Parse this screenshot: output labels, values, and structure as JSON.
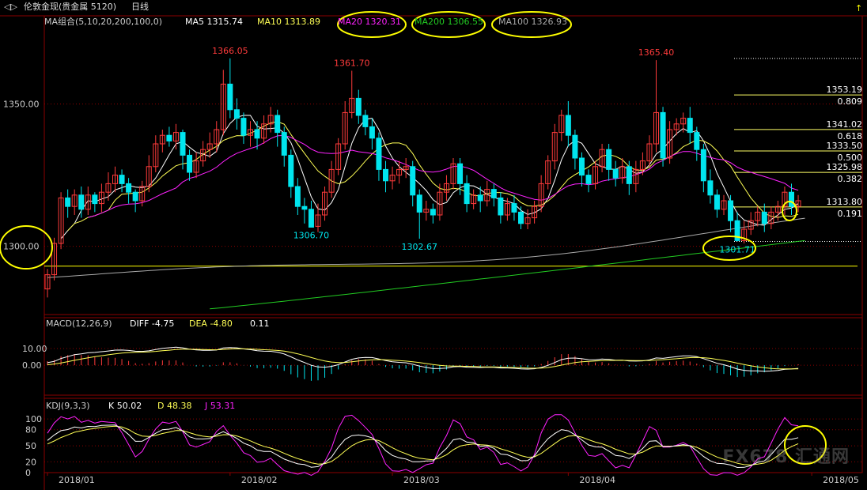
{
  "header": {
    "symbol": "伦敦金现(贵金属 5120)",
    "period": "日线",
    "ma_group": "MA组合(5,10,20,200,100,0)",
    "ma5": "MA5 1315.74",
    "ma10": "MA10 1313.89",
    "ma20": "MA20 1320.31",
    "ma200": "MA200 1306.55",
    "ma100": "MA100 1326.93"
  },
  "colors": {
    "bg": "#000000",
    "up": "#ff3b3b",
    "down": "#00e5ee",
    "ma5": "#ffffff",
    "ma10": "#ffff55",
    "ma20": "#ff22ff",
    "ma200": "#22cc22",
    "ma100": "#aaaaaa",
    "grid": "#8b0000",
    "axis_text": "#cccccc",
    "highlight": "#ffff00",
    "fib": "#ffff66"
  },
  "chart_data": {
    "type": "candlestick",
    "xticks": [
      "2018/01",
      "2018/02",
      "2018/03",
      "2018/04",
      "2018/05"
    ],
    "ylim": [
      1276,
      1376
    ],
    "yticks": [
      "1350.00",
      "1300.00"
    ],
    "level_line": 1293,
    "candles": [
      [
        1285,
        1290,
        1282,
        1292
      ],
      [
        1290,
        1301,
        1288,
        1303
      ],
      [
        1301,
        1317,
        1299,
        1319
      ],
      [
        1317,
        1314,
        1310,
        1320
      ],
      [
        1314,
        1318,
        1311,
        1320
      ],
      [
        1318,
        1313,
        1310,
        1321
      ],
      [
        1313,
        1318,
        1311,
        1321
      ],
      [
        1318,
        1315,
        1312,
        1319
      ],
      [
        1315,
        1319,
        1312,
        1322
      ],
      [
        1319,
        1322,
        1316,
        1326
      ],
      [
        1322,
        1325,
        1319,
        1328
      ],
      [
        1325,
        1322,
        1319,
        1327
      ],
      [
        1322,
        1319,
        1315,
        1324
      ],
      [
        1319,
        1316,
        1312,
        1320
      ],
      [
        1316,
        1321,
        1314,
        1323
      ],
      [
        1321,
        1328,
        1319,
        1332
      ],
      [
        1328,
        1336,
        1326,
        1339
      ],
      [
        1336,
        1339,
        1333,
        1341
      ],
      [
        1339,
        1337,
        1335,
        1342
      ],
      [
        1337,
        1340,
        1334,
        1343
      ],
      [
        1340,
        1332,
        1327,
        1341
      ],
      [
        1332,
        1326,
        1323,
        1334
      ],
      [
        1326,
        1330,
        1324,
        1333
      ],
      [
        1330,
        1334,
        1328,
        1337
      ],
      [
        1334,
        1336,
        1331,
        1340
      ],
      [
        1336,
        1341,
        1333,
        1344
      ],
      [
        1341,
        1357,
        1339,
        1362
      ],
      [
        1357,
        1348,
        1345,
        1366.05
      ],
      [
        1348,
        1345,
        1341,
        1352
      ],
      [
        1345,
        1339,
        1336,
        1347
      ],
      [
        1339,
        1341,
        1335,
        1344
      ],
      [
        1341,
        1338,
        1334,
        1344
      ],
      [
        1338,
        1343,
        1336,
        1346
      ],
      [
        1343,
        1346,
        1340,
        1349
      ],
      [
        1346,
        1340,
        1335,
        1348
      ],
      [
        1340,
        1332,
        1328,
        1342
      ],
      [
        1332,
        1321,
        1317,
        1334
      ],
      [
        1321,
        1314,
        1311,
        1324
      ],
      [
        1314,
        1313,
        1308,
        1317
      ],
      [
        1313,
        1306.7,
        1306.7,
        1316
      ],
      [
        1307,
        1311,
        1305,
        1315
      ],
      [
        1311,
        1319,
        1309,
        1321
      ],
      [
        1319,
        1327,
        1317,
        1330
      ],
      [
        1327,
        1336,
        1325,
        1338
      ],
      [
        1336,
        1347,
        1334,
        1351
      ],
      [
        1347,
        1352,
        1345,
        1361.7
      ],
      [
        1352,
        1346,
        1343,
        1355
      ],
      [
        1346,
        1342,
        1339,
        1348
      ],
      [
        1342,
        1338,
        1334,
        1345
      ],
      [
        1338,
        1327,
        1323,
        1340
      ],
      [
        1327,
        1323,
        1319,
        1330
      ],
      [
        1323,
        1325,
        1320,
        1328
      ],
      [
        1325,
        1327,
        1322,
        1330
      ],
      [
        1327,
        1328,
        1324,
        1331
      ],
      [
        1328,
        1318,
        1314,
        1330
      ],
      [
        1318,
        1312,
        1302.67,
        1320
      ],
      [
        1312,
        1313,
        1309,
        1316
      ],
      [
        1313,
        1311,
        1308,
        1315
      ],
      [
        1311,
        1319,
        1309,
        1322
      ],
      [
        1319,
        1322,
        1316,
        1325
      ],
      [
        1322,
        1329,
        1320,
        1331
      ],
      [
        1329,
        1322,
        1318,
        1331
      ],
      [
        1322,
        1315,
        1312,
        1325
      ],
      [
        1315,
        1318,
        1313,
        1320
      ],
      [
        1318,
        1316,
        1312,
        1321
      ],
      [
        1316,
        1320,
        1314,
        1323
      ],
      [
        1320,
        1317,
        1314,
        1322
      ],
      [
        1317,
        1311,
        1308,
        1319
      ],
      [
        1311,
        1315,
        1309,
        1317
      ],
      [
        1315,
        1312,
        1309,
        1318
      ],
      [
        1312,
        1308,
        1306,
        1314
      ],
      [
        1308,
        1310,
        1306,
        1313
      ],
      [
        1310,
        1314,
        1308,
        1316
      ],
      [
        1314,
        1322,
        1312,
        1325
      ],
      [
        1322,
        1330,
        1320,
        1332
      ],
      [
        1330,
        1340,
        1327,
        1343
      ],
      [
        1340,
        1346,
        1337,
        1348
      ],
      [
        1346,
        1339,
        1335,
        1351
      ],
      [
        1339,
        1331,
        1327,
        1341
      ],
      [
        1331,
        1325,
        1321,
        1333
      ],
      [
        1325,
        1322,
        1319,
        1327
      ],
      [
        1322,
        1328,
        1320,
        1330
      ],
      [
        1328,
        1334,
        1326,
        1336
      ],
      [
        1334,
        1327,
        1323,
        1336
      ],
      [
        1327,
        1324,
        1321,
        1330
      ],
      [
        1324,
        1328,
        1322,
        1331
      ],
      [
        1328,
        1322,
        1318,
        1330
      ],
      [
        1322,
        1327,
        1319,
        1330
      ],
      [
        1327,
        1330,
        1325,
        1333
      ],
      [
        1330,
        1336,
        1328,
        1339
      ],
      [
        1336,
        1347,
        1333,
        1365.4
      ],
      [
        1347,
        1331,
        1328,
        1349
      ],
      [
        1331,
        1341,
        1329,
        1344
      ],
      [
        1341,
        1343,
        1339,
        1345
      ],
      [
        1343,
        1345,
        1340,
        1347
      ],
      [
        1345,
        1340,
        1336,
        1349
      ],
      [
        1340,
        1334,
        1330,
        1342
      ],
      [
        1334,
        1323,
        1319,
        1336
      ],
      [
        1323,
        1318,
        1315,
        1327
      ],
      [
        1318,
        1313,
        1310,
        1320
      ],
      [
        1313,
        1316,
        1311,
        1318
      ],
      [
        1316,
        1309,
        1305,
        1318
      ],
      [
        1309,
        1302,
        1301.71,
        1312
      ],
      [
        1302,
        1306,
        1301,
        1309
      ],
      [
        1306,
        1309,
        1304,
        1312
      ],
      [
        1309,
        1312,
        1307,
        1314
      ],
      [
        1312,
        1308,
        1305,
        1315
      ],
      [
        1308,
        1312,
        1306,
        1314
      ],
      [
        1312,
        1314,
        1309,
        1316
      ],
      [
        1314,
        1319,
        1311,
        1321
      ],
      [
        1319,
        1314,
        1311,
        1322
      ],
      [
        1314,
        1316,
        1312,
        1318
      ]
    ],
    "price_labels": [
      {
        "text": "1366.05",
        "index": 27,
        "price": 1366.05,
        "pos": "above",
        "color": "#ff3b3b"
      },
      {
        "text": "1361.70",
        "index": 45,
        "price": 1361.7,
        "pos": "above",
        "color": "#ff3b3b"
      },
      {
        "text": "1365.40",
        "index": 90,
        "price": 1365.4,
        "pos": "above",
        "color": "#ff3b3b"
      },
      {
        "text": "1306.70",
        "index": 39,
        "price": 1306.7,
        "pos": "below",
        "color": "#00e5ee"
      },
      {
        "text": "1302.67",
        "index": 55,
        "price": 1302.67,
        "pos": "below",
        "color": "#00e5ee"
      },
      {
        "text": "1301.71",
        "index": 102,
        "price": 1301.71,
        "pos": "below",
        "color": "#00e5ee"
      }
    ],
    "fib_levels": [
      {
        "price": 1353.19,
        "label": "1353.19",
        "ratio": "0.809"
      },
      {
        "price": 1341.02,
        "label": "1341.02",
        "ratio": "0.618"
      },
      {
        "price": 1333.5,
        "label": "1333.50",
        "ratio": "0.500"
      },
      {
        "price": 1325.98,
        "label": "1325.98",
        "ratio": "0.382"
      },
      {
        "price": 1313.8,
        "label": "1313.80",
        "ratio": "0.191"
      }
    ],
    "macd": {
      "label": "MACD(12,26,9)",
      "diff": "DIFF -4.75",
      "dea": "DEA -4.80",
      "hist": "0.11",
      "ylim": [
        -18,
        20
      ],
      "yticks": [
        "10.00",
        "0.00"
      ]
    },
    "kdj": {
      "label": "KDJ(9,3,3)",
      "k": "K 50.02",
      "d": "D 48.38",
      "j": "J 53.31",
      "ylim": [
        0,
        112
      ],
      "yticks": [
        "100",
        "80",
        "50",
        "20",
        "0"
      ]
    }
  },
  "watermark": "FX678 汇通网"
}
